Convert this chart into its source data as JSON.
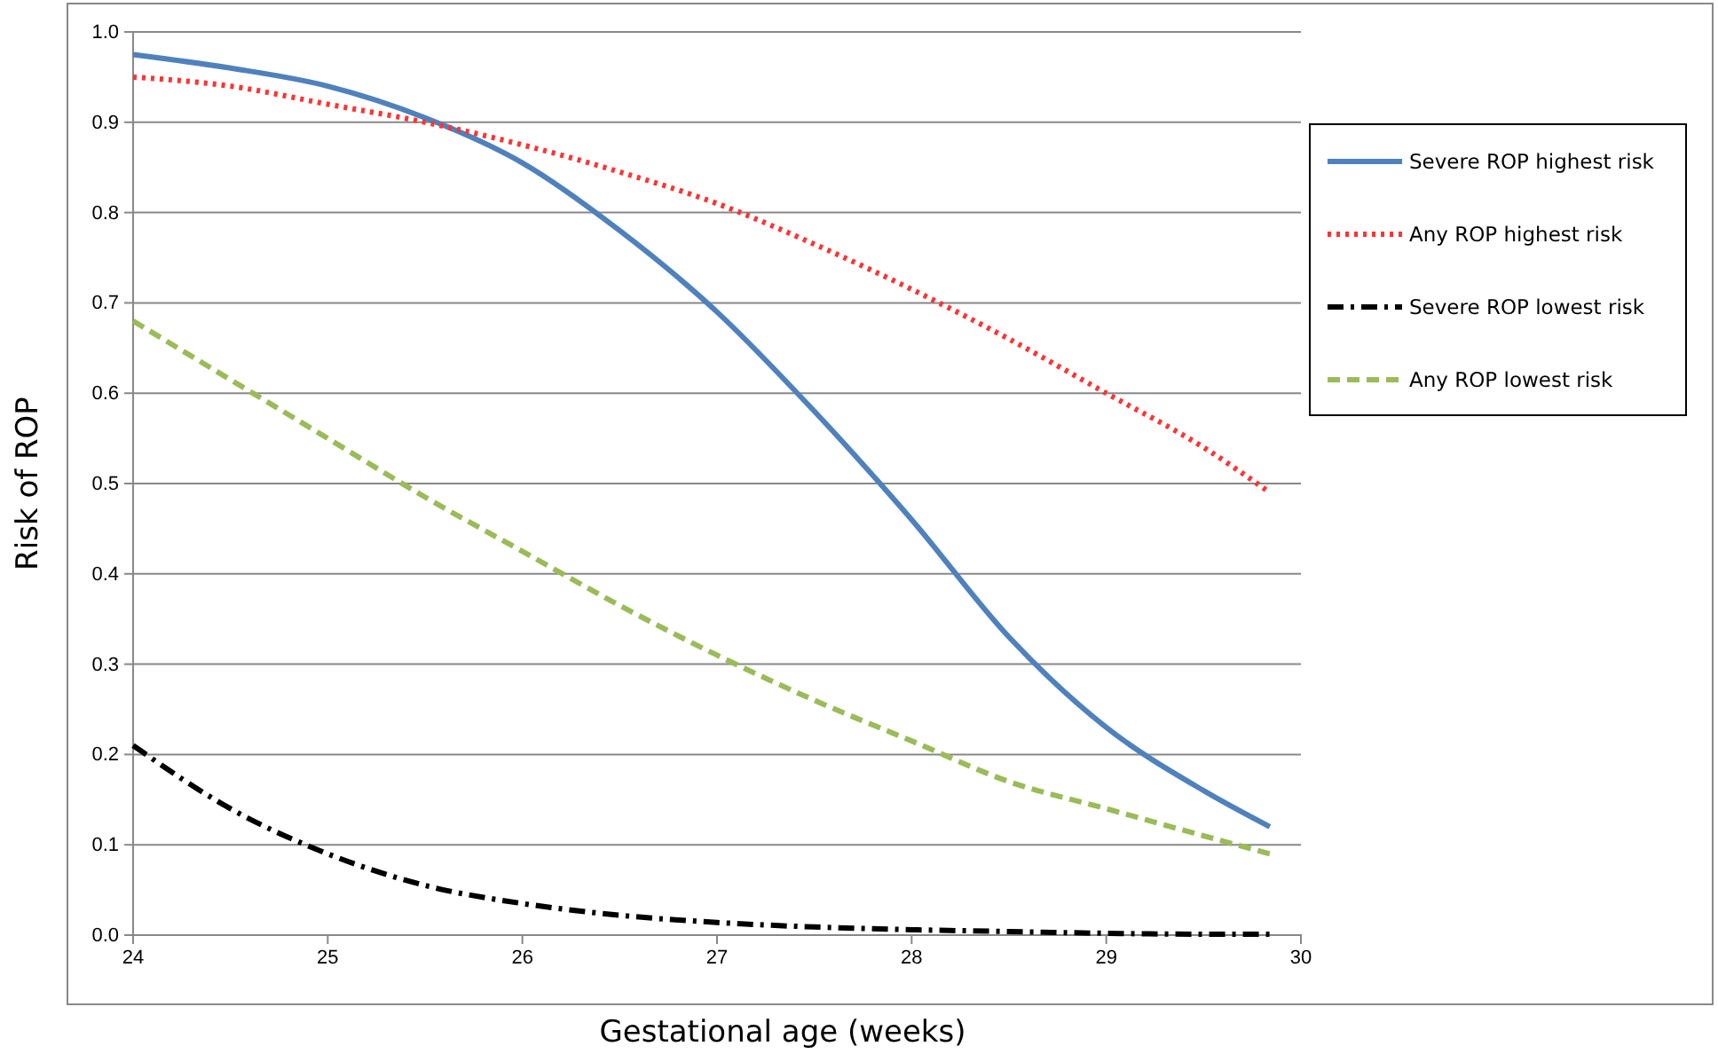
{
  "chart_data": {
    "type": "line",
    "xlabel": "Gestational age (weeks)",
    "ylabel": "Risk of ROP",
    "xlim": [
      24,
      30
    ],
    "xticks": [
      24,
      25,
      26,
      27,
      28,
      29,
      30
    ],
    "ylim": [
      0,
      1
    ],
    "yticks": [
      {
        "value": 0,
        "label": "0.0"
      },
      0.1,
      0.2,
      0.3,
      0.4,
      0.5,
      0.6,
      0.7,
      0.8,
      0.9,
      {
        "value": 1,
        "label": "1.0"
      }
    ],
    "grid": "y",
    "legend": "right",
    "marker": "none",
    "series": [
      {
        "name": "Severe ROP highest risk",
        "color": "#4f81bd",
        "line_style": "solid",
        "x": [
          24,
          24.5,
          25,
          25.5,
          26,
          26.5,
          27,
          27.5,
          28,
          28.5,
          29,
          29.5,
          29.84
        ],
        "values": [
          0.975,
          0.96,
          0.94,
          0.905,
          0.855,
          0.78,
          0.69,
          0.58,
          0.46,
          0.33,
          0.23,
          0.16,
          0.12
        ]
      },
      {
        "name": "Any ROP highest risk",
        "color": "#ff3333",
        "line_style": "dotted",
        "x": [
          24,
          24.5,
          25,
          25.5,
          26,
          26.5,
          27,
          27.5,
          28,
          28.5,
          29,
          29.5,
          29.84
        ],
        "values": [
          0.95,
          0.94,
          0.92,
          0.9,
          0.875,
          0.845,
          0.81,
          0.765,
          0.715,
          0.66,
          0.6,
          0.54,
          0.49
        ]
      },
      {
        "name": "Severe ROP lowest risk",
        "color": "#000000",
        "line_style": "dashdot",
        "x": [
          24,
          24.5,
          25,
          25.5,
          26,
          26.5,
          27,
          27.5,
          28,
          28.5,
          29,
          29.5,
          29.84
        ],
        "values": [
          0.21,
          0.14,
          0.09,
          0.055,
          0.035,
          0.022,
          0.014,
          0.009,
          0.006,
          0.004,
          0.002,
          0.001,
          0.001
        ]
      },
      {
        "name": "Any ROP lowest risk",
        "color": "#9bbb59",
        "line_style": "dashed",
        "x": [
          24,
          24.5,
          25,
          25.5,
          26,
          26.5,
          27,
          27.5,
          28,
          28.5,
          29,
          29.5,
          29.84
        ],
        "values": [
          0.68,
          0.615,
          0.55,
          0.485,
          0.425,
          0.365,
          0.31,
          0.26,
          0.215,
          0.17,
          0.14,
          0.11,
          0.09
        ]
      }
    ]
  }
}
